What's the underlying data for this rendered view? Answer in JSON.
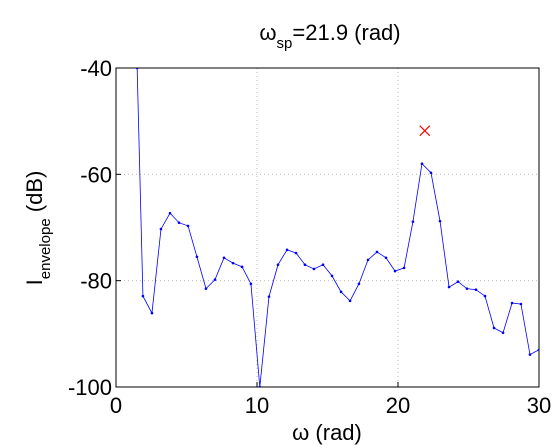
{
  "chart_data": {
    "type": "line",
    "title": {
      "symbol": "ω",
      "subscript": "sp",
      "text": "=21.9 (rad)"
    },
    "xlabel": "ω (rad)",
    "ylabel": {
      "symbol": "I",
      "subscript": "envelope",
      "text": " (dB)"
    },
    "xlim": [
      0,
      30
    ],
    "ylim": [
      -100,
      -40
    ],
    "xticks": [
      0,
      10,
      20,
      30
    ],
    "yticks": [
      -100,
      -80,
      -60,
      -40
    ],
    "grid": true,
    "series": [
      {
        "color": "#0000ff",
        "x": [
          1.5,
          1.91,
          2.55,
          3.19,
          3.83,
          4.47,
          5.11,
          5.74,
          6.38,
          7.02,
          7.66,
          8.3,
          8.94,
          9.57,
          10.2,
          10.85,
          11.49,
          12.13,
          12.77,
          13.4,
          14.04,
          14.68,
          15.32,
          15.96,
          16.6,
          17.23,
          17.87,
          18.51,
          19.15,
          19.79,
          20.43,
          21.06,
          21.7,
          22.34,
          22.98,
          23.62,
          24.26,
          24.89,
          25.53,
          26.17,
          26.81,
          27.45,
          28.09,
          28.72,
          29.36,
          30.0
        ],
        "values": [
          -40,
          -82.9,
          -86.1,
          -70.3,
          -67.3,
          -69.1,
          -69.7,
          -75.5,
          -81.5,
          -79.8,
          -75.7,
          -76.7,
          -77.4,
          -80.6,
          -100,
          -83.0,
          -77.0,
          -74.2,
          -74.8,
          -77.0,
          -77.8,
          -77.0,
          -79.1,
          -82.1,
          -83.8,
          -80.6,
          -76.1,
          -74.6,
          -75.7,
          -78.2,
          -77.6,
          -68.9,
          -58.0,
          -59.7,
          -68.8,
          -81.2,
          -80.2,
          -81.5,
          -81.7,
          -82.9,
          -88.9,
          -89.8,
          -84.2,
          -84.4,
          -93.9,
          -93.0
        ]
      }
    ],
    "marker": {
      "x": 21.9,
      "y": -51.8,
      "color": "#ff0000"
    }
  }
}
